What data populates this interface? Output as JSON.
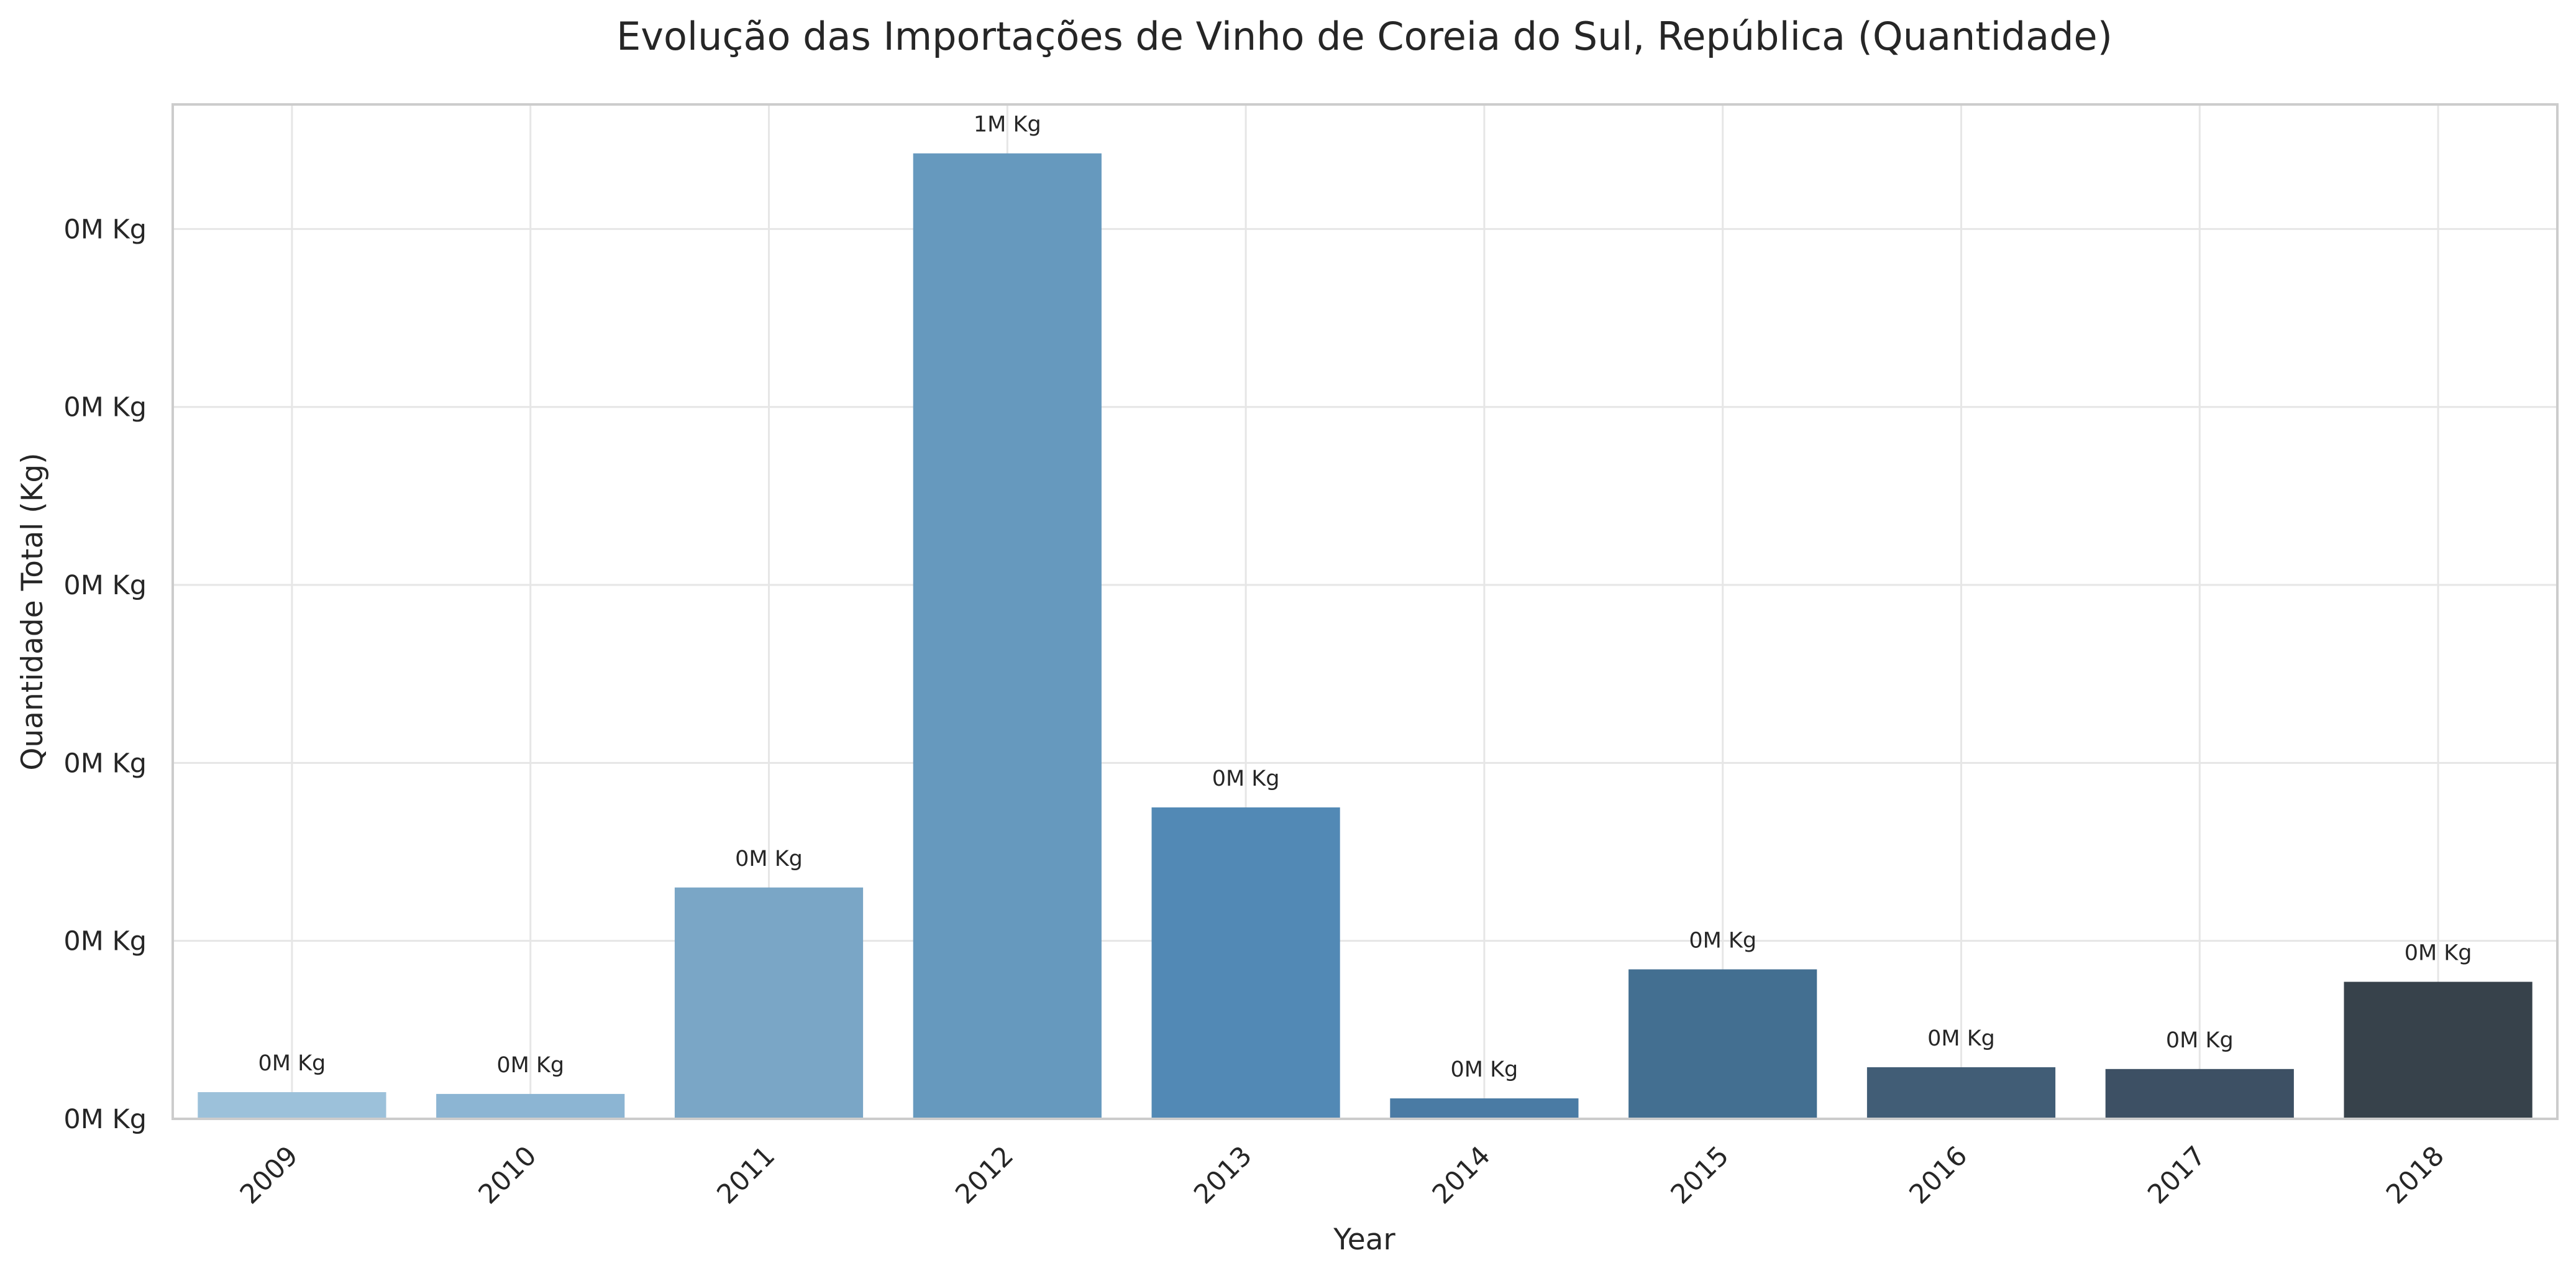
{
  "chart_data": {
    "type": "bar",
    "title": "Evolução das Importações de Vinho de Coreia do Sul, República (Quantidade)",
    "xlabel": "Year",
    "ylabel": "Quantidade Total (Kg)",
    "categories": [
      "2009",
      "2010",
      "2011",
      "2012",
      "2013",
      "2014",
      "2015",
      "2016",
      "2017",
      "2018"
    ],
    "values": [
      30000,
      28000,
      260000,
      1085000,
      350000,
      23000,
      168000,
      58000,
      56000,
      154000
    ],
    "data_labels": [
      "0M Kg",
      "0M Kg",
      "0M Kg",
      "1M Kg",
      "0M Kg",
      "0M Kg",
      "0M Kg",
      "0M Kg",
      "0M Kg",
      "0M Kg"
    ],
    "yticks": [
      0,
      200000,
      400000,
      600000,
      800000,
      1000000
    ],
    "ytick_labels": [
      "0M Kg",
      "0M Kg",
      "0M Kg",
      "0M Kg",
      "0M Kg",
      "0M Kg"
    ],
    "ylim": [
      0,
      1140000
    ],
    "grid": true,
    "colors": [
      "#9cc1da",
      "#8cb5d3",
      "#7aa6c6",
      "#6699be",
      "#5289b5",
      "#4a7ba4",
      "#436f91",
      "#415d76",
      "#3d5064",
      "#37424b"
    ]
  }
}
